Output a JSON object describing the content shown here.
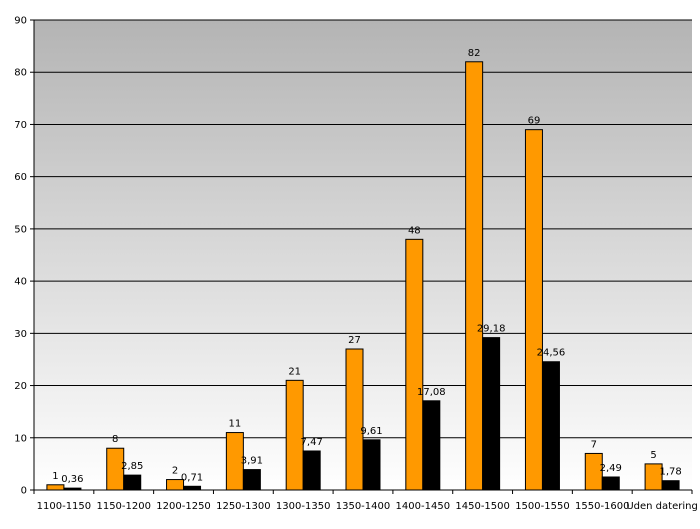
{
  "chart_data": {
    "type": "bar",
    "categories": [
      "1100-1150",
      "1150-1200",
      "1200-1250",
      "1250-1300",
      "1300-1350",
      "1350-1400",
      "1400-1450",
      "1450-1500",
      "1500-1550",
      "1550-1600",
      "Uden datering"
    ],
    "series": [
      {
        "values": [
          1,
          8,
          2,
          11,
          21,
          27,
          48,
          82,
          69,
          7,
          5
        ],
        "labels": [
          "1",
          "8",
          "2",
          "11",
          "21",
          "27",
          "48",
          "82",
          "69",
          "7",
          "5"
        ],
        "color": "#ff9900"
      },
      {
        "values": [
          0.36,
          2.85,
          0.71,
          3.91,
          7.47,
          9.61,
          17.08,
          29.18,
          24.56,
          2.49,
          1.78
        ],
        "labels": [
          "0,36",
          "2,85",
          "0,71",
          "3,91",
          "7,47",
          "9,61",
          "17,08",
          "29,18",
          "24,56",
          "2,49",
          "1,78"
        ],
        "color": "#000000"
      }
    ],
    "yticks": [
      "0",
      "10",
      "20",
      "30",
      "40",
      "50",
      "60",
      "70",
      "80",
      "90"
    ],
    "ylim": [
      0,
      90
    ],
    "grid": true,
    "background_gradient": [
      "#b4b4b4",
      "#ffffff"
    ],
    "title": "",
    "xlabel": "",
    "ylabel": ""
  }
}
